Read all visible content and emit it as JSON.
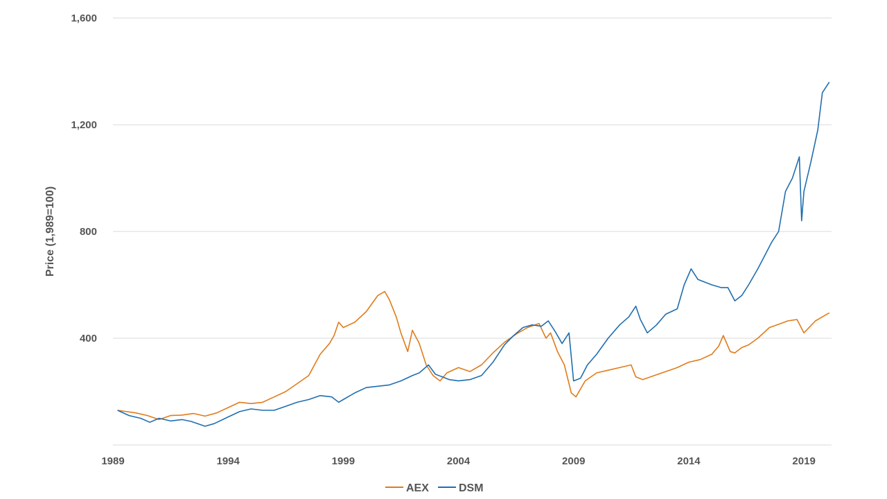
{
  "chart_data": {
    "type": "line",
    "title": "",
    "xlabel": "",
    "ylabel": "Price (1,989=100)",
    "xlim": [
      1989,
      2020.2
    ],
    "ylim": [
      0,
      1600
    ],
    "x_ticks": [
      1989,
      1994,
      1999,
      2004,
      2009,
      2014,
      2019
    ],
    "x_tick_labels": [
      "1989",
      "1994",
      "1999",
      "2004",
      "2009",
      "2014",
      "2019"
    ],
    "y_ticks": [
      400,
      800,
      1200,
      1600
    ],
    "y_tick_labels": [
      "400",
      "800",
      "1,200",
      "1,600"
    ],
    "grid": "horizontal",
    "legend": "bottom-center",
    "series": [
      {
        "name": "AEX",
        "color": "#E07B1A",
        "x": [
          1989.2,
          1990.0,
          1990.5,
          1991.0,
          1991.5,
          1992.0,
          1992.5,
          1993.0,
          1993.5,
          1994.0,
          1994.5,
          1995.0,
          1995.5,
          1996.0,
          1996.5,
          1997.0,
          1997.5,
          1998.0,
          1998.4,
          1998.6,
          1998.8,
          1999.0,
          1999.5,
          2000.0,
          2000.5,
          2000.8,
          2001.0,
          2001.3,
          2001.5,
          2001.8,
          2002.0,
          2002.3,
          2002.6,
          2002.9,
          2003.2,
          2003.5,
          2004.0,
          2004.5,
          2005.0,
          2005.5,
          2006.0,
          2006.5,
          2007.0,
          2007.5,
          2007.8,
          2008.0,
          2008.3,
          2008.6,
          2008.9,
          2009.1,
          2009.5,
          2010.0,
          2010.5,
          2011.0,
          2011.5,
          2011.7,
          2012.0,
          2012.5,
          2013.0,
          2013.5,
          2014.0,
          2014.5,
          2015.0,
          2015.3,
          2015.5,
          2015.8,
          2016.0,
          2016.3,
          2016.6,
          2017.0,
          2017.5,
          2018.0,
          2018.3,
          2018.7,
          2019.0,
          2019.5,
          2019.8,
          2020.1
        ],
        "y": [
          130,
          120,
          110,
          95,
          110,
          112,
          118,
          108,
          120,
          140,
          160,
          155,
          160,
          180,
          200,
          230,
          260,
          340,
          380,
          410,
          460,
          440,
          460,
          500,
          560,
          575,
          545,
          480,
          420,
          350,
          430,
          380,
          300,
          260,
          240,
          270,
          290,
          275,
          300,
          345,
          385,
          415,
          440,
          455,
          400,
          420,
          350,
          300,
          195,
          180,
          240,
          270,
          280,
          290,
          300,
          255,
          245,
          260,
          275,
          290,
          310,
          320,
          340,
          370,
          410,
          350,
          345,
          365,
          375,
          400,
          440,
          455,
          465,
          470,
          420,
          465,
          480,
          495
        ]
      },
      {
        "name": "DSM",
        "color": "#1F6DAF",
        "x": [
          1989.2,
          1989.7,
          1990.2,
          1990.6,
          1991.0,
          1991.5,
          1992.0,
          1992.4,
          1993.0,
          1993.4,
          1994.0,
          1994.5,
          1995.0,
          1995.5,
          1996.0,
          1996.5,
          1997.0,
          1997.5,
          1998.0,
          1998.5,
          1998.8,
          1999.0,
          1999.5,
          2000.0,
          2000.5,
          2001.0,
          2001.5,
          2002.0,
          2002.3,
          2002.7,
          2003.0,
          2003.3,
          2003.6,
          2004.0,
          2004.5,
          2005.0,
          2005.5,
          2006.0,
          2006.4,
          2006.8,
          2007.2,
          2007.6,
          2007.9,
          2008.2,
          2008.5,
          2008.8,
          2009.0,
          2009.3,
          2009.6,
          2010.0,
          2010.5,
          2011.0,
          2011.4,
          2011.7,
          2011.9,
          2012.2,
          2012.6,
          2013.0,
          2013.5,
          2013.8,
          2014.1,
          2014.4,
          2014.7,
          2015.0,
          2015.4,
          2015.7,
          2016.0,
          2016.3,
          2016.6,
          2017.0,
          2017.3,
          2017.6,
          2017.9,
          2018.2,
          2018.5,
          2018.8,
          2018.9,
          2019.0,
          2019.3,
          2019.6,
          2019.8,
          2020.1
        ],
        "y": [
          130,
          110,
          100,
          85,
          100,
          90,
          95,
          88,
          70,
          80,
          105,
          125,
          135,
          130,
          130,
          145,
          160,
          170,
          185,
          180,
          160,
          170,
          195,
          215,
          220,
          225,
          240,
          260,
          270,
          300,
          265,
          255,
          245,
          240,
          245,
          260,
          310,
          375,
          410,
          440,
          450,
          445,
          465,
          425,
          380,
          420,
          240,
          250,
          300,
          340,
          400,
          450,
          480,
          520,
          470,
          420,
          450,
          490,
          510,
          600,
          660,
          620,
          610,
          600,
          590,
          590,
          540,
          560,
          600,
          660,
          710,
          760,
          800,
          950,
          1000,
          1080,
          840,
          950,
          1060,
          1180,
          1320,
          1360
        ]
      }
    ]
  },
  "legend": {
    "items": [
      {
        "label": "AEX",
        "color": "#E07B1A"
      },
      {
        "label": "DSM",
        "color": "#1F6DAF"
      }
    ]
  }
}
